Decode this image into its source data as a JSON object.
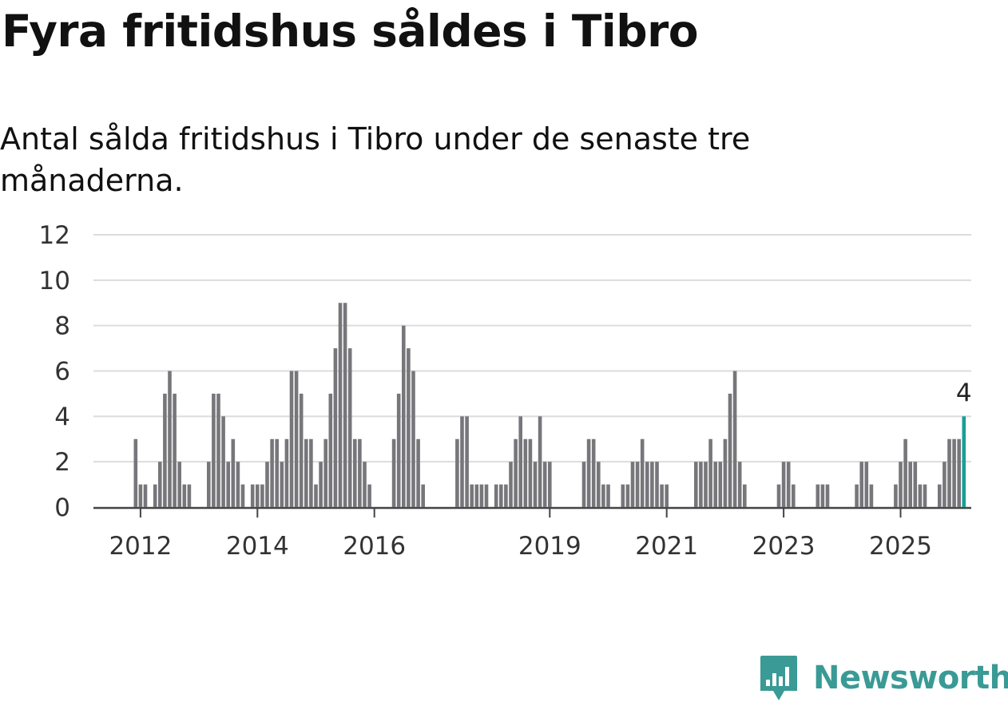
{
  "title": "Fyra fritidshus såldes i Tibro",
  "subtitle": "Antal sålda fritidshus i Tibro under de senaste tre månaderna.",
  "brand": {
    "name": "Newsworthy",
    "color": "#3a9a95",
    "icon": "bar-chart-badge-icon"
  },
  "chart_data": {
    "type": "bar",
    "start": "2011-12",
    "end": "2025-08",
    "title": "Fyra fritidshus såldes i Tibro",
    "subtitle": "Antal sålda fritidshus i Tibro under de senaste tre månaderna.",
    "ylim": [
      0,
      12
    ],
    "yticks": [
      0,
      2,
      4,
      6,
      8,
      10,
      12
    ],
    "xticks": [
      "2012",
      "2014",
      "2016",
      "2019",
      "2021",
      "2023",
      "2025"
    ],
    "grid": true,
    "bar_color": "#77767b",
    "highlight_color": "#1a9e96",
    "highlight_label": "4",
    "values": [
      3,
      1,
      1,
      0,
      1,
      2,
      5,
      6,
      5,
      2,
      1,
      1,
      0,
      0,
      0,
      2,
      5,
      5,
      4,
      2,
      3,
      2,
      1,
      0,
      1,
      1,
      1,
      2,
      3,
      3,
      2,
      3,
      6,
      6,
      5,
      3,
      3,
      1,
      2,
      3,
      5,
      7,
      9,
      9,
      7,
      3,
      3,
      2,
      1,
      0,
      0,
      0,
      0,
      3,
      5,
      8,
      7,
      6,
      3,
      1,
      0,
      0,
      0,
      0,
      0,
      0,
      3,
      4,
      4,
      1,
      1,
      1,
      1,
      0,
      1,
      1,
      1,
      2,
      3,
      4,
      3,
      3,
      2,
      4,
      2,
      2,
      0,
      0,
      0,
      0,
      0,
      0,
      2,
      3,
      3,
      2,
      1,
      1,
      0,
      0,
      1,
      1,
      2,
      2,
      3,
      2,
      2,
      2,
      1,
      1,
      0,
      0,
      0,
      0,
      0,
      2,
      2,
      2,
      3,
      2,
      2,
      3,
      5,
      6,
      2,
      1,
      0,
      0,
      0,
      0,
      0,
      0,
      1,
      2,
      2,
      1,
      0,
      0,
      0,
      0,
      1,
      1,
      1,
      0,
      0,
      0,
      0,
      0,
      1,
      2,
      2,
      1,
      0,
      0,
      0,
      0,
      1,
      2,
      3,
      2,
      2,
      1,
      1,
      0,
      0,
      1,
      2,
      3,
      3,
      3,
      4
    ]
  }
}
